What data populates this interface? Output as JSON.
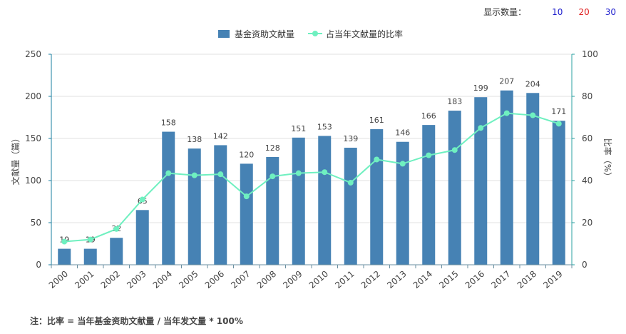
{
  "topbar": {
    "label": "显示数量：",
    "options": [
      {
        "text": "10",
        "color": "#1a1acc"
      },
      {
        "text": "20",
        "color": "#e02020"
      },
      {
        "text": "30",
        "color": "#1a1acc"
      }
    ]
  },
  "legend": {
    "bar_label": "基金资助文献量",
    "line_label": "占当年文献量的比率"
  },
  "note": "注：比率 = 当年基金资助文献量 / 当年发文量 * 100%",
  "colors": {
    "bar": "#4682b4",
    "line": "#6ff0c0",
    "axis_left": "#1a7fa0",
    "axis_right": "#2aa0a0",
    "grid": "#e0e0e0"
  },
  "chart_data": {
    "type": "bar",
    "categories": [
      "2000",
      "2001",
      "2002",
      "2003",
      "2004",
      "2005",
      "2006",
      "2007",
      "2008",
      "2009",
      "2010",
      "2011",
      "2012",
      "2013",
      "2014",
      "2015",
      "2016",
      "2017",
      "2018",
      "2019"
    ],
    "series": [
      {
        "name": "基金资助文献量",
        "type": "bar",
        "axis": "left",
        "values": [
          19,
          19,
          32,
          65,
          158,
          138,
          142,
          120,
          128,
          151,
          153,
          139,
          161,
          146,
          166,
          183,
          199,
          207,
          204,
          171
        ]
      },
      {
        "name": "占当年文献量的比率",
        "type": "line",
        "axis": "right",
        "values": [
          11,
          12,
          17,
          31,
          43.5,
          42.5,
          43,
          32.5,
          42,
          43.5,
          44,
          39,
          50,
          48,
          52,
          54.5,
          65,
          72,
          71,
          67
        ]
      }
    ],
    "ylabel": "文献量（篇）",
    "y2label": "比率（%）",
    "ylim": [
      0,
      250
    ],
    "y2lim": [
      0,
      100
    ],
    "yticks": [
      0,
      50,
      100,
      150,
      200,
      250
    ],
    "y2ticks": [
      0,
      20,
      40,
      60,
      80,
      100
    ],
    "grid": true,
    "legend_position": "top-center"
  }
}
